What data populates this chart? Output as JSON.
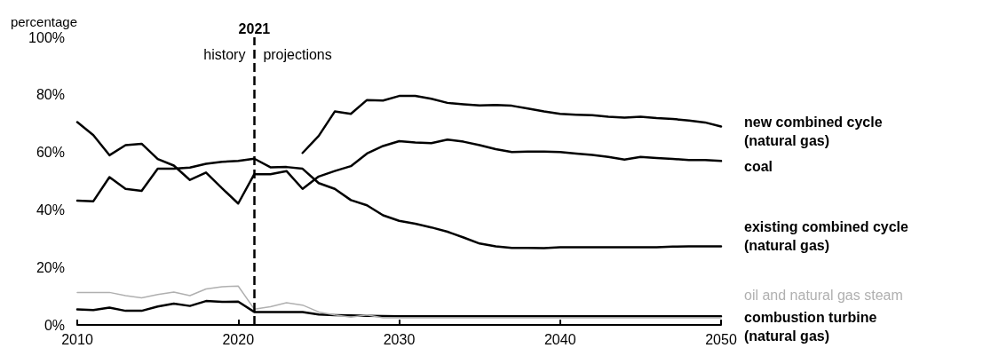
{
  "chart_data": {
    "type": "line",
    "ylabel": "percentage",
    "xlim": [
      2010,
      2050
    ],
    "ylim": [
      0,
      100
    ],
    "xticks": [
      2010,
      2020,
      2030,
      2040,
      2050
    ],
    "yticks": [
      {
        "value": 0,
        "label": "0%"
      },
      {
        "value": 20,
        "label": "20%"
      },
      {
        "value": 40,
        "label": "40%"
      },
      {
        "value": 60,
        "label": "60%"
      },
      {
        "value": 80,
        "label": "80%"
      },
      {
        "value": 100,
        "label": "100%"
      }
    ],
    "x": [
      2010,
      2011,
      2012,
      2013,
      2014,
      2015,
      2016,
      2017,
      2018,
      2019,
      2020,
      2021,
      2022,
      2023,
      2024,
      2025,
      2026,
      2027,
      2028,
      2029,
      2030,
      2031,
      2032,
      2033,
      2034,
      2035,
      2036,
      2037,
      2038,
      2039,
      2040,
      2041,
      2042,
      2043,
      2044,
      2045,
      2046,
      2047,
      2048,
      2049,
      2050
    ],
    "grid": false,
    "legend": false,
    "marker": "none",
    "line_style": "solid",
    "ref_lines": [
      {
        "axis": "x",
        "value": 2021,
        "label": "2021",
        "line_style": "dashed",
        "color": "#000000"
      }
    ],
    "annotations": [
      {
        "text": "history",
        "x": 2021,
        "y": 94
      },
      {
        "text": "projections",
        "x": 2021,
        "y": 94
      }
    ],
    "series": [
      {
        "name": "new combined cycle (natural gas)",
        "color": "#000000",
        "x": [
          2024,
          2025,
          2026,
          2027,
          2028,
          2029,
          2030,
          2031,
          2032,
          2033,
          2034,
          2035,
          2036,
          2037,
          2038,
          2039,
          2040,
          2041,
          2042,
          2043,
          2044,
          2045,
          2046,
          2047,
          2048,
          2049,
          2050
        ],
        "values": [
          59.8,
          65.7,
          74.2,
          73.4,
          78.2,
          78,
          79.6,
          79.6,
          78.6,
          77.2,
          76.7,
          76.3,
          76.5,
          76.2,
          75.2,
          74.2,
          73.4,
          73.1,
          72.9,
          72.4,
          72.1,
          72.4,
          71.9,
          71.6,
          71.1,
          70.4,
          69
        ]
      },
      {
        "name": "coal",
        "color": "#000000",
        "values": [
          70.5,
          66,
          59,
          62.5,
          63,
          57.7,
          55.4,
          50.4,
          53,
          47.5,
          42.2,
          52.4,
          52.4,
          53.5,
          47.3,
          51.6,
          53.5,
          55.2,
          59.6,
          62.2,
          63.9,
          63.4,
          63.2,
          64.4,
          63.7,
          62.5,
          61.1,
          60.1,
          60.3,
          60.3,
          60.1,
          59.6,
          59.1,
          58.4,
          57.5,
          58.4,
          58,
          57.7,
          57.3,
          57.3,
          57
        ]
      },
      {
        "name": "existing combined cycle (natural gas)",
        "color": "#000000",
        "values": [
          43.2,
          43,
          51.4,
          47.3,
          46.6,
          54.3,
          54.3,
          54.7,
          56,
          56.7,
          57,
          57.8,
          54.8,
          54.9,
          54.3,
          49.3,
          47.3,
          43.4,
          41.6,
          38.1,
          36.2,
          35.2,
          33.9,
          32.4,
          30.4,
          28.3,
          27.3,
          26.8,
          26.8,
          26.7,
          27,
          27,
          27,
          27,
          27,
          27,
          27,
          27.2,
          27.3,
          27.3,
          27.3
        ]
      },
      {
        "name": "oil and natural gas steam",
        "color": "#b0b0b0",
        "values": [
          11.3,
          11.3,
          11.3,
          10.2,
          9.4,
          10.6,
          11.4,
          10.2,
          12.5,
          13.3,
          13.5,
          5.5,
          6.3,
          7.7,
          6.9,
          4.5,
          3.5,
          2.7,
          3.5,
          2.5,
          2.5,
          2.5,
          2.5,
          2.5,
          2.5,
          2.5,
          2.5,
          2.5,
          2.5,
          2.5,
          2.5,
          2.5,
          2.5,
          2.5,
          2.5,
          2.5,
          2.5,
          2.5,
          2.5,
          2.5,
          2.5
        ]
      },
      {
        "name": "combustion turbine (natural gas)",
        "color": "#000000",
        "values": [
          5.4,
          5.2,
          6,
          4.9,
          4.9,
          6.4,
          7.4,
          6.6,
          8.3,
          8,
          8.1,
          4.5,
          4.5,
          4.5,
          4.5,
          3.6,
          3.4,
          3.3,
          3.2,
          3.1,
          3,
          3,
          3,
          3,
          3,
          3,
          3,
          3,
          3,
          3,
          3,
          3,
          3,
          3,
          3,
          3,
          3,
          3,
          3,
          3,
          3
        ]
      }
    ]
  }
}
